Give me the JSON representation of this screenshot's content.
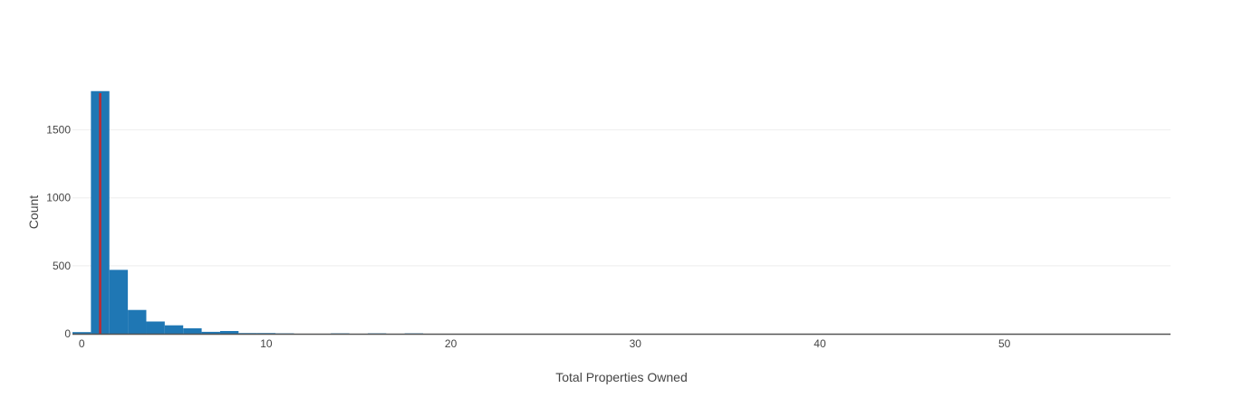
{
  "chart_data": {
    "type": "bar",
    "subtype": "histogram",
    "title": "",
    "xlabel": "Total Properties Owned",
    "ylabel": "Count",
    "xlim": [
      -0.5,
      59
    ],
    "ylim": [
      0,
      1790
    ],
    "x_ticks": [
      0,
      10,
      20,
      30,
      40,
      50
    ],
    "y_ticks": [
      0,
      500,
      1000,
      1500
    ],
    "bin_width": 1,
    "bins": [
      {
        "x0": -0.5,
        "x1": 0.5,
        "count": 12
      },
      {
        "x0": 0.5,
        "x1": 1.5,
        "count": 1785
      },
      {
        "x0": 1.5,
        "x1": 2.5,
        "count": 470
      },
      {
        "x0": 2.5,
        "x1": 3.5,
        "count": 175
      },
      {
        "x0": 3.5,
        "x1": 4.5,
        "count": 90
      },
      {
        "x0": 4.5,
        "x1": 5.5,
        "count": 62
      },
      {
        "x0": 5.5,
        "x1": 6.5,
        "count": 40
      },
      {
        "x0": 6.5,
        "x1": 7.5,
        "count": 14
      },
      {
        "x0": 7.5,
        "x1": 8.5,
        "count": 20
      },
      {
        "x0": 8.5,
        "x1": 9.5,
        "count": 5
      },
      {
        "x0": 9.5,
        "x1": 10.5,
        "count": 5
      },
      {
        "x0": 10.5,
        "x1": 11.5,
        "count": 3
      },
      {
        "x0": 13.5,
        "x1": 14.5,
        "count": 3
      },
      {
        "x0": 15.5,
        "x1": 16.5,
        "count": 3
      },
      {
        "x0": 17.5,
        "x1": 18.5,
        "count": 3
      }
    ],
    "reference_line": {
      "x": 1,
      "color": "#c0282d"
    },
    "bar_color": "#1f77b4",
    "gridlines": true,
    "legend": false
  }
}
